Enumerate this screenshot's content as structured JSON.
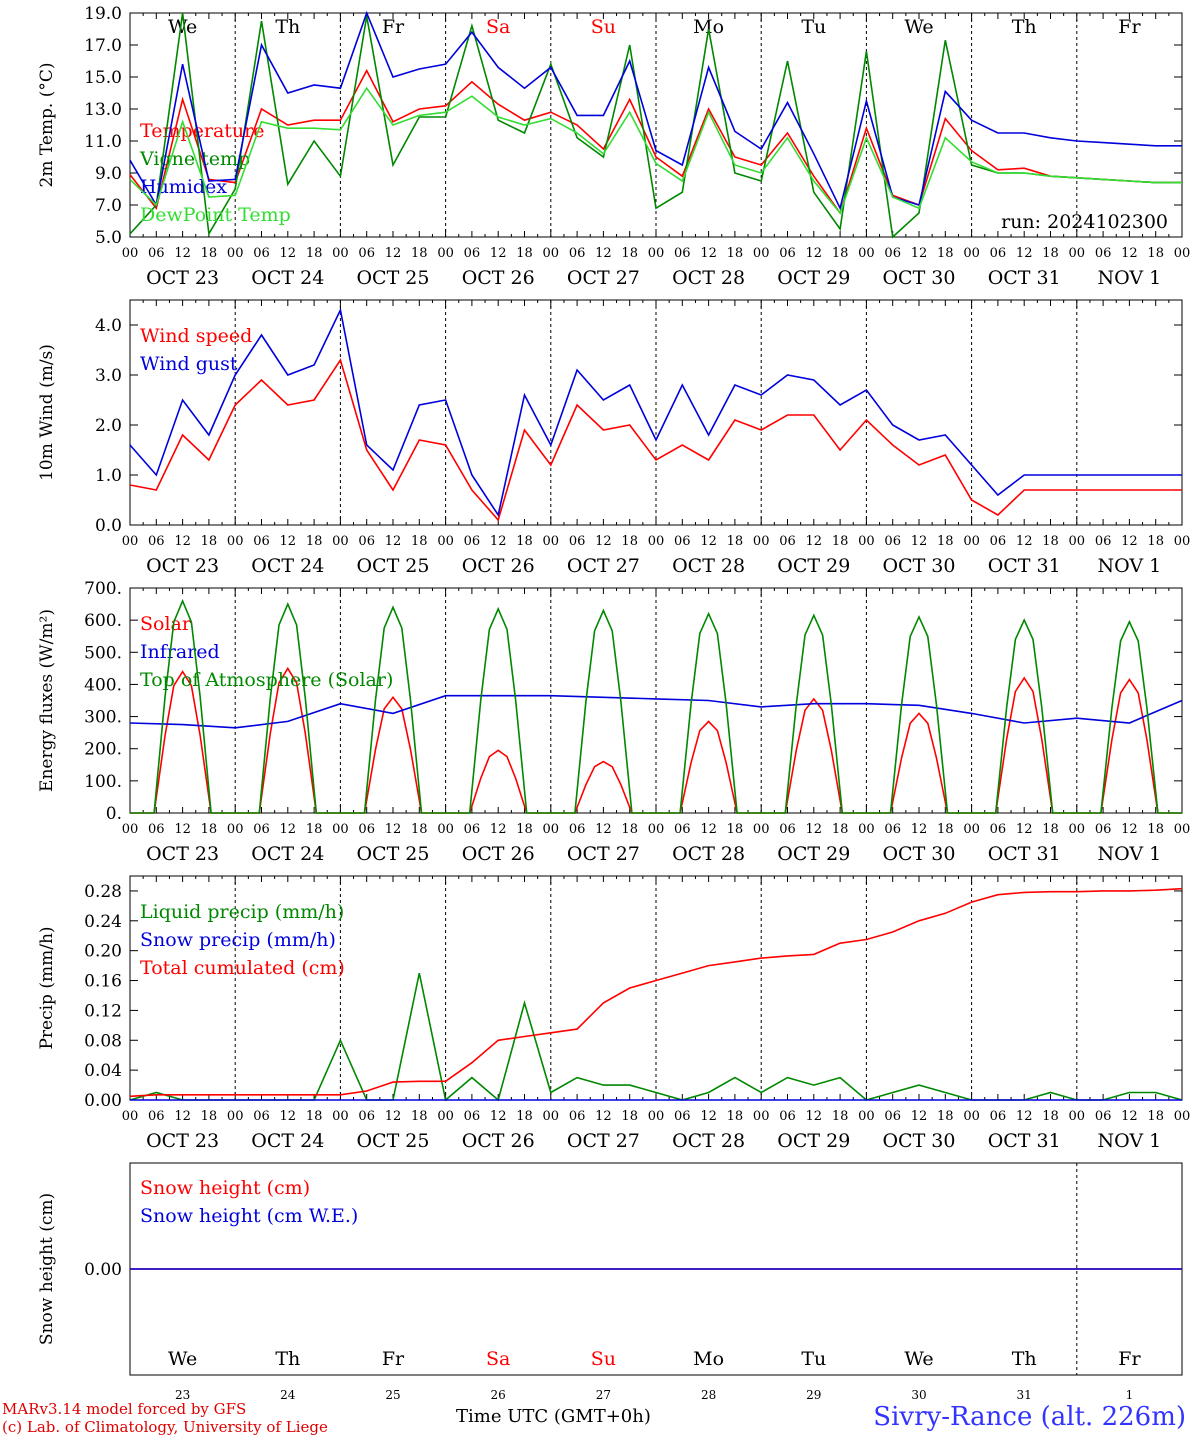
{
  "chart_data": [
    {
      "type": "line",
      "ylabel": "2m Temp. (°C)",
      "ylim": [
        5.0,
        19.0
      ],
      "yticks": [
        "5.0",
        "7.0",
        "9.0",
        "11.0",
        "13.0",
        "15.0",
        "17.0",
        "19.0"
      ],
      "annotation": "run: 2024102300",
      "x_hours": [
        0,
        6,
        12,
        18,
        24,
        30,
        36,
        42,
        48,
        54,
        60,
        66,
        72,
        78,
        84,
        90,
        96,
        102,
        108,
        114,
        120,
        126,
        132,
        138,
        144,
        150,
        156,
        162,
        168,
        174,
        180,
        186,
        192,
        198,
        204,
        210,
        216,
        222,
        228,
        234,
        240
      ],
      "series": [
        {
          "name": "Temperature",
          "color": "#ff0000",
          "values": [
            8.9,
            6.8,
            13.6,
            8.6,
            8.4,
            13.0,
            12.0,
            12.3,
            12.3,
            15.4,
            12.2,
            13.0,
            13.2,
            14.7,
            13.3,
            12.3,
            12.8,
            12.0,
            10.5,
            13.6,
            10.0,
            8.8,
            13.0,
            10.0,
            9.5,
            11.5,
            8.8,
            6.5,
            11.8,
            7.6,
            7.0,
            12.4,
            10.4,
            9.2,
            9.3,
            8.8,
            8.7,
            8.6,
            8.5,
            8.4,
            8.4
          ]
        },
        {
          "name": "Vigne temp",
          "color": "#008800",
          "values": [
            5.2,
            7.0,
            19.0,
            5.2,
            8.0,
            18.5,
            8.3,
            11.0,
            8.8,
            18.8,
            9.5,
            12.5,
            12.5,
            18.2,
            12.3,
            11.5,
            15.8,
            11.2,
            10.0,
            17.0,
            6.8,
            7.8,
            18.0,
            9.0,
            8.5,
            16.0,
            7.8,
            5.5,
            16.6,
            5.0,
            6.5,
            17.3,
            9.5,
            9.0,
            9.0,
            8.8,
            8.7,
            8.6,
            8.5,
            8.4,
            8.4
          ]
        },
        {
          "name": "Humidex",
          "color": "#0000dd",
          "values": [
            9.8,
            7.0,
            15.8,
            8.5,
            8.6,
            17.0,
            14.0,
            14.5,
            14.3,
            19.0,
            15.0,
            15.5,
            15.8,
            17.8,
            15.6,
            14.3,
            15.6,
            12.6,
            12.6,
            16.0,
            10.4,
            9.5,
            15.6,
            11.6,
            10.5,
            13.4,
            10.2,
            6.8,
            13.5,
            7.5,
            7.0,
            14.1,
            12.3,
            11.5,
            11.5,
            11.2,
            11.0,
            10.9,
            10.8,
            10.7,
            10.7
          ]
        },
        {
          "name": "DewPoint Temp",
          "color": "#33dd33",
          "values": [
            8.6,
            7.0,
            12.2,
            7.5,
            7.6,
            12.2,
            11.8,
            11.8,
            11.7,
            14.3,
            12.0,
            12.6,
            12.8,
            13.8,
            12.5,
            12.0,
            12.4,
            11.5,
            10.2,
            12.8,
            9.6,
            8.5,
            12.8,
            9.5,
            9.0,
            11.2,
            8.5,
            6.5,
            11.2,
            7.5,
            6.8,
            11.2,
            9.7,
            9.0,
            9.0,
            8.8,
            8.7,
            8.6,
            8.5,
            8.4,
            8.4
          ]
        }
      ]
    },
    {
      "type": "line",
      "ylabel": "10m Wind (m/s)",
      "ylim": [
        0.0,
        4.5
      ],
      "yticks": [
        "0.0",
        "1.0",
        "2.0",
        "3.0",
        "4.0"
      ],
      "x_hours": [
        0,
        6,
        12,
        18,
        24,
        30,
        36,
        42,
        48,
        54,
        60,
        66,
        72,
        78,
        84,
        90,
        96,
        102,
        108,
        114,
        120,
        126,
        132,
        138,
        144,
        150,
        156,
        162,
        168,
        174,
        180,
        186,
        192,
        198,
        204,
        210,
        216,
        222,
        228,
        234,
        240
      ],
      "series": [
        {
          "name": "Wind speed",
          "color": "#ff0000",
          "values": [
            0.8,
            0.7,
            1.8,
            1.3,
            2.4,
            2.9,
            2.4,
            2.5,
            3.3,
            1.5,
            0.7,
            1.7,
            1.6,
            0.7,
            0.1,
            1.9,
            1.2,
            2.4,
            1.9,
            2.0,
            1.3,
            1.6,
            1.3,
            2.1,
            1.9,
            2.2,
            2.2,
            1.5,
            2.1,
            1.6,
            1.2,
            1.4,
            0.5,
            0.2,
            0.7,
            0.7,
            0.7,
            0.7,
            0.7,
            0.7,
            0.7
          ]
        },
        {
          "name": "Wind gust",
          "color": "#0000dd",
          "values": [
            1.6,
            1.0,
            2.5,
            1.8,
            3.0,
            3.8,
            3.0,
            3.2,
            4.3,
            1.6,
            1.1,
            2.4,
            2.5,
            1.0,
            0.2,
            2.6,
            1.6,
            3.1,
            2.5,
            2.8,
            1.7,
            2.8,
            1.8,
            2.8,
            2.6,
            3.0,
            2.9,
            2.4,
            2.7,
            2.0,
            1.7,
            1.8,
            1.2,
            0.6,
            1.0,
            1.0,
            1.0,
            1.0,
            1.0,
            1.0,
            1.0
          ]
        }
      ]
    },
    {
      "type": "line",
      "ylabel": "Energy fluxes (W/m²)",
      "ylim": [
        0,
        700
      ],
      "yticks": [
        "0.",
        "100.",
        "200.",
        "300.",
        "400.",
        "500.",
        "600.",
        "700."
      ],
      "diurnal_peak_hours": [
        12,
        36,
        60,
        84,
        108,
        132,
        156,
        180,
        204,
        228
      ],
      "series": [
        {
          "name": "Solar",
          "color": "#ff0000",
          "daily_peaks": [
            440,
            450,
            360,
            195,
            160,
            285,
            355,
            310,
            420,
            415
          ]
        },
        {
          "name": "Infrared",
          "color": "#0000dd",
          "x_hours": [
            0,
            12,
            24,
            36,
            48,
            60,
            72,
            84,
            96,
            108,
            120,
            132,
            144,
            156,
            168,
            180,
            192,
            204,
            216,
            228,
            240
          ],
          "values": [
            280,
            275,
            265,
            285,
            340,
            310,
            365,
            365,
            365,
            360,
            355,
            350,
            330,
            340,
            340,
            335,
            310,
            280,
            295,
            280,
            350
          ]
        },
        {
          "name": "Top of Atmosphere (Solar)",
          "color": "#008800",
          "daily_peaks": [
            660,
            650,
            640,
            635,
            630,
            620,
            615,
            610,
            600,
            595
          ]
        }
      ]
    },
    {
      "type": "line",
      "ylabel": "Precip (mm/h)",
      "ylim": [
        0.0,
        0.3
      ],
      "yticks": [
        "0.00",
        "0.04",
        "0.08",
        "0.12",
        "0.16",
        "0.20",
        "0.24",
        "0.28"
      ],
      "x_hours": [
        0,
        6,
        12,
        18,
        24,
        30,
        36,
        42,
        48,
        54,
        60,
        66,
        72,
        78,
        84,
        90,
        96,
        102,
        108,
        114,
        120,
        126,
        132,
        138,
        144,
        150,
        156,
        162,
        168,
        174,
        180,
        186,
        192,
        198,
        204,
        210,
        216,
        222,
        228,
        234,
        240
      ],
      "series": [
        {
          "name": "Liquid precip (mm/h)",
          "color": "#008800",
          "values": [
            0.0,
            0.01,
            0.0,
            0.0,
            0.0,
            0.0,
            0.0,
            0.0,
            0.08,
            0.0,
            0.0,
            0.17,
            0.0,
            0.03,
            0.0,
            0.13,
            0.01,
            0.03,
            0.02,
            0.02,
            0.01,
            0.0,
            0.01,
            0.03,
            0.01,
            0.03,
            0.02,
            0.03,
            0.0,
            0.01,
            0.02,
            0.01,
            0.0,
            0.0,
            0.0,
            0.01,
            0.0,
            0.0,
            0.01,
            0.01,
            0.0
          ]
        },
        {
          "name": "Snow precip (mm/h)",
          "color": "#0000dd",
          "values": [
            0,
            0,
            0,
            0,
            0,
            0,
            0,
            0,
            0,
            0,
            0,
            0,
            0,
            0,
            0,
            0,
            0,
            0,
            0,
            0,
            0,
            0,
            0,
            0,
            0,
            0,
            0,
            0,
            0,
            0,
            0,
            0,
            0,
            0,
            0,
            0,
            0,
            0,
            0,
            0,
            0
          ]
        },
        {
          "name": "Total cumulated (cm)",
          "color": "#ff0000",
          "values": [
            0.005,
            0.007,
            0.007,
            0.007,
            0.007,
            0.007,
            0.007,
            0.007,
            0.007,
            0.012,
            0.024,
            0.025,
            0.025,
            0.05,
            0.08,
            0.085,
            0.09,
            0.095,
            0.13,
            0.15,
            0.16,
            0.17,
            0.18,
            0.185,
            0.19,
            0.193,
            0.195,
            0.21,
            0.215,
            0.225,
            0.24,
            0.25,
            0.265,
            0.275,
            0.278,
            0.279,
            0.279,
            0.28,
            0.28,
            0.281,
            0.283
          ]
        }
      ]
    },
    {
      "type": "line",
      "ylabel": "Snow height (cm)",
      "ylim": [
        -1,
        1
      ],
      "yticks": [
        "0.00"
      ],
      "series": [
        {
          "name": "Snow height (cm)",
          "color": "#ff0000",
          "values": [
            0,
            0
          ]
        },
        {
          "name": "Snow height (cm W.E.)",
          "color": "#0000dd",
          "values": [
            0,
            0
          ]
        }
      ]
    }
  ],
  "axis": {
    "hour_ticks": [
      "00",
      "06",
      "12",
      "18"
    ],
    "final_tick": "00",
    "dates": [
      "OCT 23",
      "OCT 24",
      "OCT 25",
      "OCT 26",
      "OCT 27",
      "OCT 28",
      "OCT 29",
      "OCT 30",
      "OCT 31",
      "NOV  1"
    ],
    "weekdays": [
      "We",
      "Th",
      "Fr",
      "Sa",
      "Su",
      "Mo",
      "Tu",
      "We",
      "Th",
      "Fr"
    ],
    "weekend_color": "#ff0000",
    "day_numbers": [
      "23",
      "24",
      "25",
      "26",
      "27",
      "28",
      "29",
      "30",
      "31",
      "1"
    ]
  },
  "footer": {
    "model_line": "MARv3.14 model forced by GFS",
    "lab_line": "(c) Lab. of Climatology, University of Liege",
    "time_label": "Time UTC (GMT+0h)",
    "station": "Sivry-Rance (alt. 226m)"
  }
}
